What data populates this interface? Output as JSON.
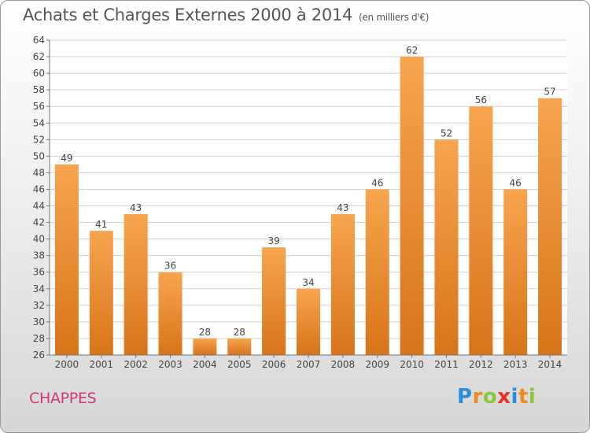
{
  "header": {
    "title": "Achats et Charges Externes 2000 à 2014",
    "unit": "(en milliers d'€)"
  },
  "footer": {
    "commune": "CHAPPES"
  },
  "logo": {
    "letters": [
      {
        "ch": "P",
        "color": "#2a8de0"
      },
      {
        "ch": "r",
        "color": "#f08a1c"
      },
      {
        "ch": "o",
        "color": "#8cc63f"
      },
      {
        "ch": "x",
        "color": "#e8332a"
      },
      {
        "ch": "i",
        "color": "#2a8de0"
      },
      {
        "ch": "t",
        "color": "#f08a1c"
      },
      {
        "ch": "i",
        "color": "#8cc63f"
      }
    ]
  },
  "chart_data": {
    "type": "bar",
    "title": "Achats et Charges Externes 2000 à 2014",
    "subtitle": "(en milliers d'€)",
    "categories": [
      "2000",
      "2001",
      "2002",
      "2003",
      "2004",
      "2005",
      "2006",
      "2007",
      "2008",
      "2009",
      "2010",
      "2011",
      "2012",
      "2013",
      "2014"
    ],
    "values": [
      49,
      41,
      43,
      36,
      28,
      28,
      39,
      34,
      43,
      46,
      62,
      52,
      56,
      46,
      57
    ],
    "ylim": [
      26,
      64
    ],
    "yticks": [
      26,
      28,
      30,
      32,
      34,
      36,
      38,
      40,
      42,
      44,
      46,
      48,
      50,
      52,
      54,
      56,
      58,
      60,
      62,
      64
    ],
    "grid": true,
    "bar_color_top": "#f7a54f",
    "bar_color_bottom": "#d8741a"
  }
}
